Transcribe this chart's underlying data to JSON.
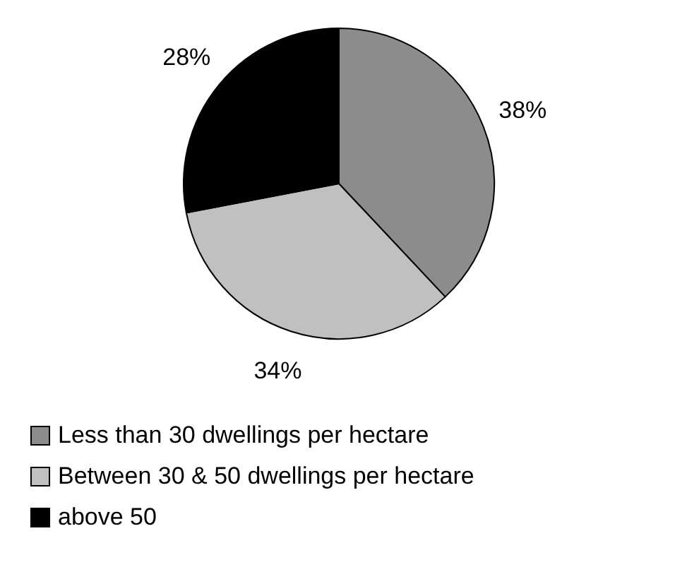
{
  "chart_data": {
    "type": "pie",
    "categories": [
      "Less than 30 dwellings per hectare",
      "Between 30 & 50 dwellings per hectare",
      "above 50"
    ],
    "values": [
      38,
      34,
      28
    ],
    "value_labels": [
      "38%",
      "34%",
      "28%"
    ],
    "colors": [
      "#8c8c8c",
      "#c0c0c0",
      "#000000"
    ],
    "legend": "bottom"
  }
}
